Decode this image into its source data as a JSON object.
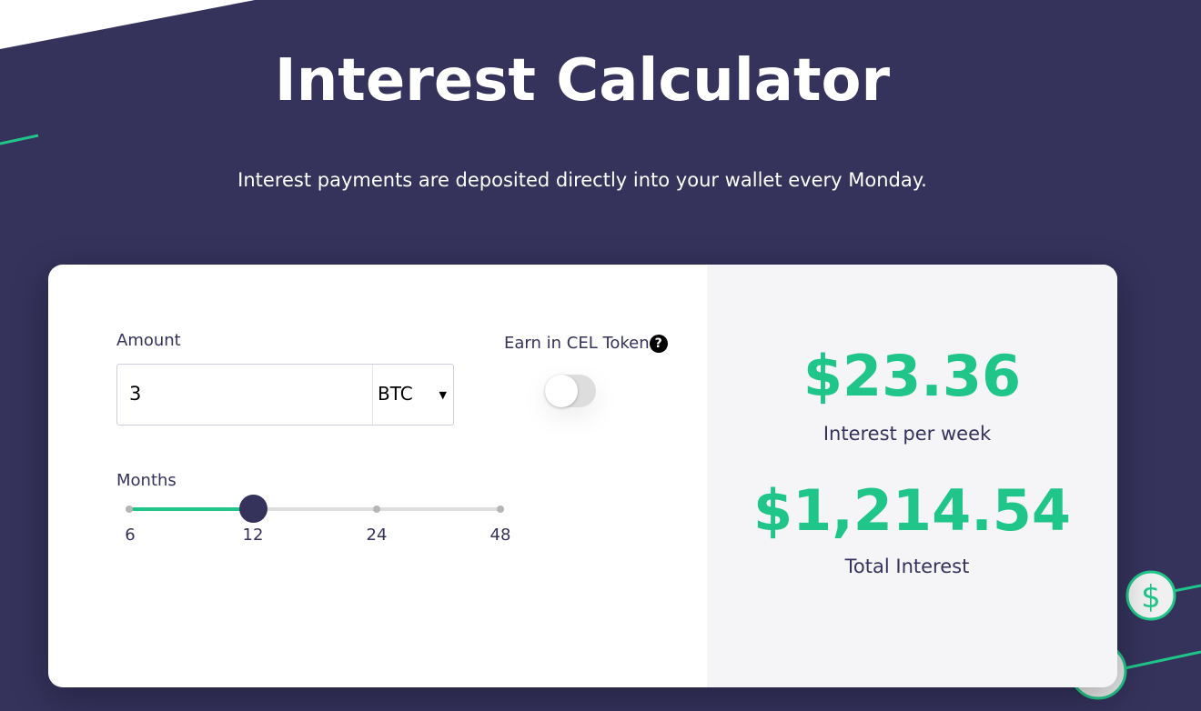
{
  "header": {
    "title": "Interest Calculator",
    "subtitle": "Interest payments are deposited directly into your wallet every Monday."
  },
  "calculator": {
    "amount_label": "Amount",
    "amount_value": "3",
    "currency": "BTC",
    "cel_label": "Earn in CEL Token",
    "help_icon": "?",
    "cel_toggle_on": false,
    "months_label": "Months",
    "months_options": [
      "6",
      "12",
      "24",
      "48"
    ],
    "months_selected": "12"
  },
  "results": {
    "weekly_value": "$23.36",
    "weekly_label": "Interest per week",
    "total_value": "$1,214.54",
    "total_label": "Total Interest"
  },
  "decor": {
    "dollar_icon": "$"
  },
  "colors": {
    "background": "#35325c",
    "accent": "#20c58a"
  }
}
